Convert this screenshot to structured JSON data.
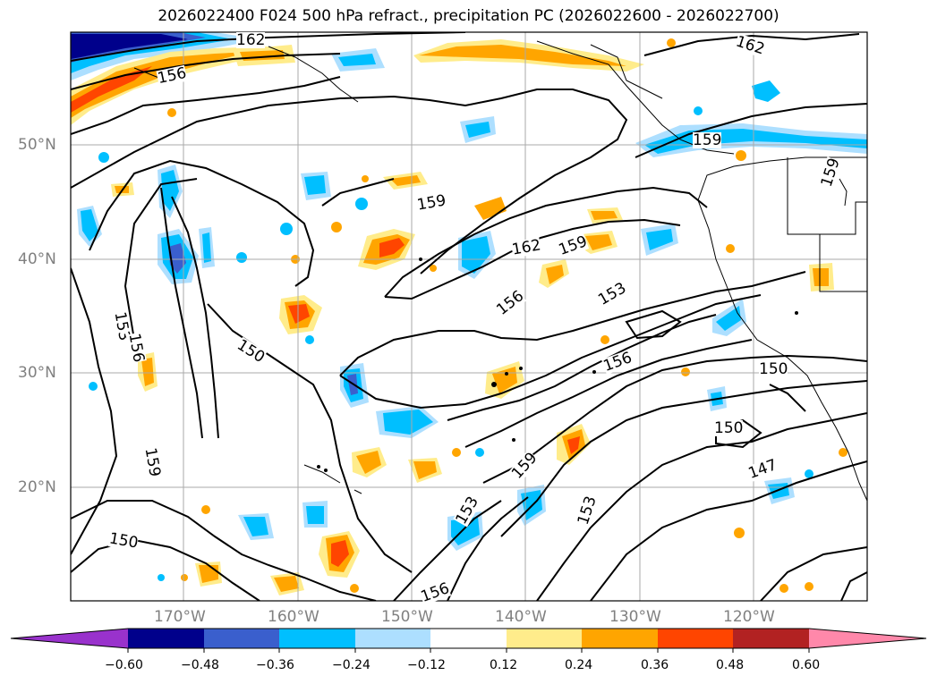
{
  "title": "2026022400 F024 500 hPa refract., precipitation PC (2026022600 - 2026022700)",
  "axes": {
    "lon_labels": [
      "170°W",
      "160°W",
      "150°W",
      "140°W",
      "130°W",
      "120°W"
    ],
    "lat_labels": [
      "50°N",
      "40°N",
      "30°N",
      "20°N"
    ]
  },
  "contour_labels": [
    "162",
    "162",
    "156",
    "159",
    "159",
    "162",
    "159",
    "156",
    "153",
    "150",
    "153",
    "156",
    "156",
    "150",
    "159",
    "150",
    "147",
    "159",
    "153",
    "153",
    "150",
    "156",
    "159"
  ],
  "colorbar": {
    "ticks": [
      "−0.60",
      "−0.48",
      "−0.36",
      "−0.24",
      "−0.12",
      "0.12",
      "0.24",
      "0.36",
      "0.48",
      "0.60"
    ],
    "colors": [
      "#9932CC",
      "#00008B",
      "#3A5FCD",
      "#00BFFF",
      "#ADDFFF",
      "#FFFFFF",
      "#FFEC8B",
      "#FFA500",
      "#FF4500",
      "#B22222",
      "#FF88AA"
    ]
  }
}
